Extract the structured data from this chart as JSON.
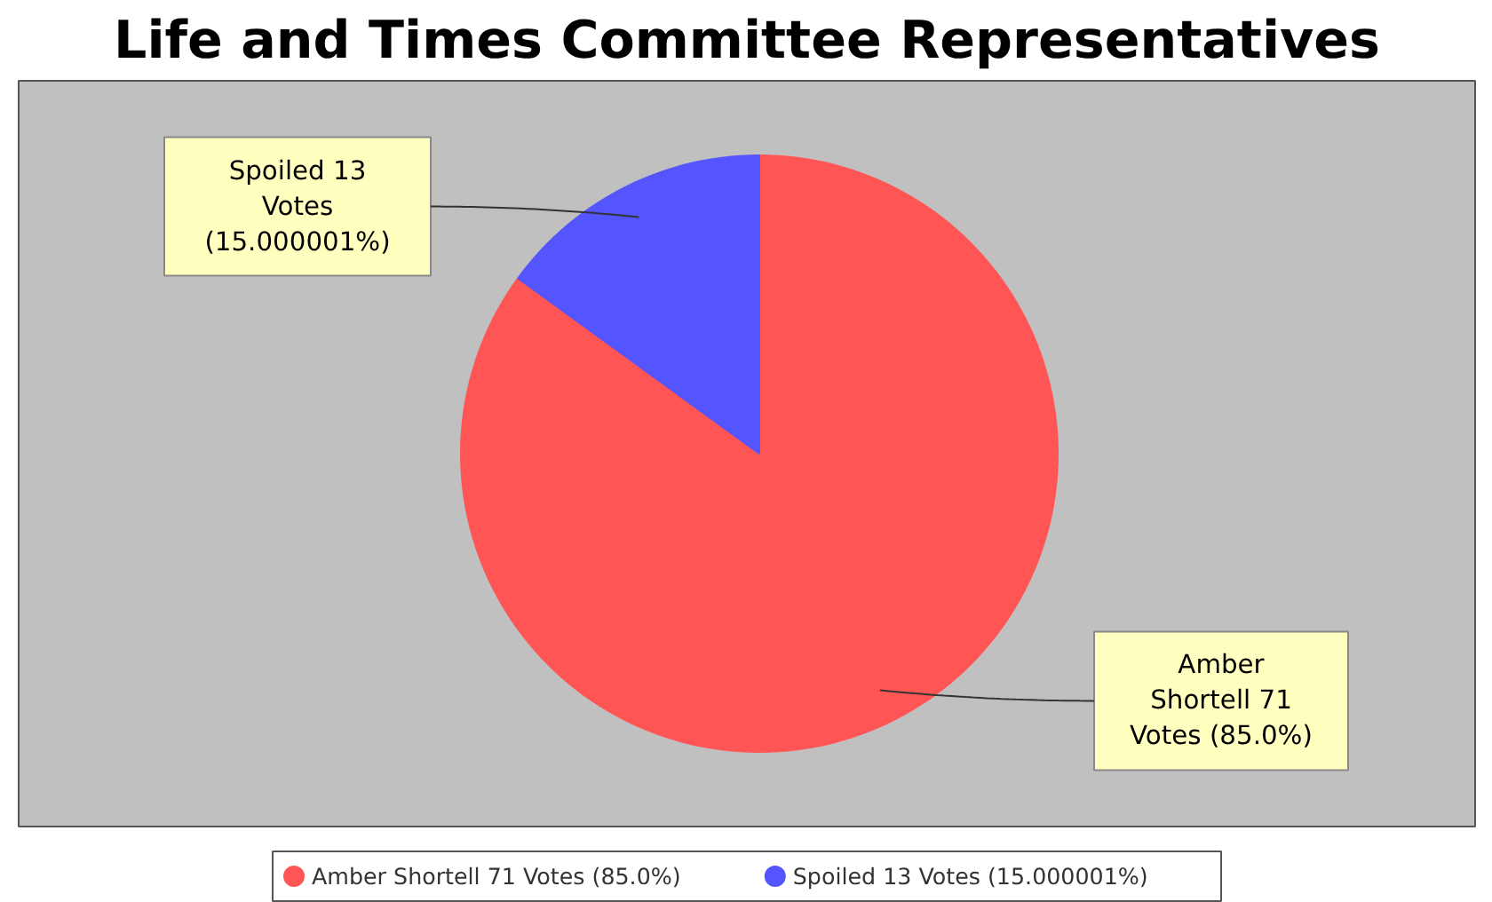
{
  "chart_data": {
    "type": "pie",
    "title": "Life and Times Committee Representatives",
    "categories": [
      "Amber Shortell 71 Votes (85.0%)",
      "Spoiled 13 Votes (15.000001%)"
    ],
    "values": [
      85,
      15
    ],
    "annotations": [
      "Amber Shortell 71 Votes (85.0%)",
      "Spoiled 13 Votes (15.000001%)"
    ],
    "colors": [
      "#ff5555",
      "#5555ff"
    ],
    "legend": "bottom"
  }
}
